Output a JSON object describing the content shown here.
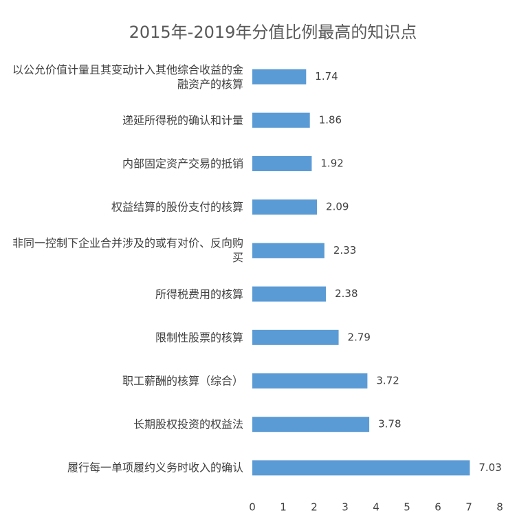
{
  "chart_data": {
    "type": "bar",
    "orientation": "horizontal",
    "title": "2015年-2019年分值比例最高的知识点",
    "categories": [
      "以公允价值计量且其变动计入其他综合收益的金融资产的核算",
      "递延所得税的确认和计量",
      "内部固定资产交易的抵销",
      "权益结算的股份支付的核算",
      "非同一控制下企业合并涉及的或有对价、反向购买",
      "所得税费用的核算",
      "限制性股票的核算",
      "职工薪酬的核算（综合）",
      "长期股权投资的权益法",
      "履行每一单项履约义务时收入的确认"
    ],
    "values": [
      1.74,
      1.86,
      1.92,
      2.09,
      2.33,
      2.38,
      2.79,
      3.72,
      3.78,
      7.03
    ],
    "color": "#5b9bd5",
    "xlim": [
      0,
      8
    ],
    "xticks": [
      0,
      1,
      2,
      3,
      4,
      5,
      6,
      7,
      8
    ],
    "grid": false
  }
}
